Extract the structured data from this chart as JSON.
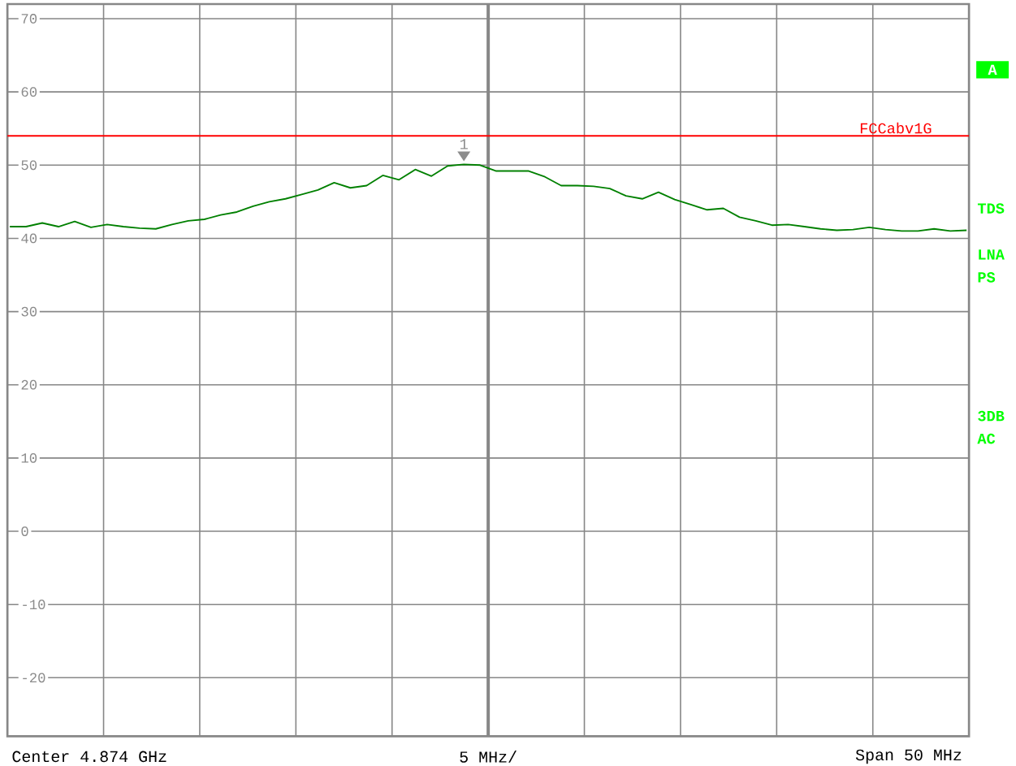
{
  "chart_data": {
    "type": "line",
    "categories": [
      null,
      null,
      null,
      null,
      null,
      null,
      null,
      null,
      null,
      null,
      null,
      null,
      null,
      null,
      null,
      null,
      null,
      null,
      null,
      null,
      null,
      null,
      null,
      null,
      null,
      null,
      null,
      null,
      null,
      null,
      null,
      null,
      null,
      null,
      null,
      null,
      null,
      null,
      null,
      null,
      null,
      null,
      null,
      null,
      null,
      null,
      null,
      null,
      null,
      null,
      null,
      null,
      null,
      null,
      null,
      null,
      null,
      null,
      null,
      null
    ],
    "series": [
      {
        "color": "#008000",
        "values": [
          41.6,
          41.6,
          42.1,
          41.6,
          42.3,
          41.5,
          41.9,
          41.6,
          41.4,
          41.3,
          41.9,
          42.4,
          42.6,
          43.2,
          43.6,
          44.4,
          45.0,
          45.4,
          46.0,
          46.6,
          47.6,
          46.9,
          47.2,
          48.6,
          48.0,
          49.4,
          48.5,
          49.9,
          50.1,
          50.0,
          49.2,
          49.2,
          49.2,
          48.4,
          47.2,
          47.2,
          47.1,
          46.8,
          45.8,
          45.4,
          46.3,
          45.3,
          44.6,
          43.9,
          44.1,
          42.9,
          42.4,
          41.8,
          41.9,
          41.6,
          41.3,
          41.1,
          41.2,
          41.5,
          41.2,
          41.0,
          41.0,
          41.3,
          41.0,
          41.1
        ]
      }
    ],
    "ylim": [
      -28,
      72
    ],
    "yticks": [
      -20,
      -10,
      0,
      10,
      20,
      30,
      40,
      50,
      60,
      70
    ],
    "grid": true,
    "tick_labels": "y",
    "ref_lines": [
      {
        "axis": "y",
        "value": 54,
        "label": "FCCabv1G",
        "color": "#ff0000"
      }
    ],
    "annotations": [
      "Center 4.874 GHz",
      "5 MHz/",
      "Span 50 MHz",
      "A",
      "TDS",
      "LNA",
      "PS",
      "3DB",
      "AC",
      "1"
    ]
  }
}
